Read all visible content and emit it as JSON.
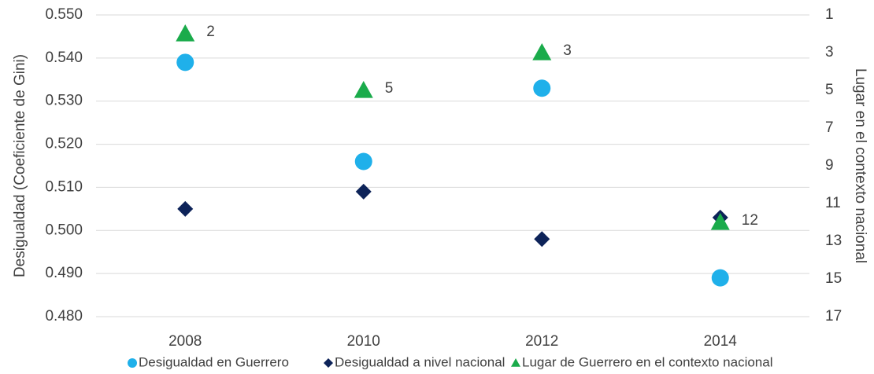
{
  "chart_data": {
    "type": "scatter",
    "categories": [
      "2008",
      "2010",
      "2012",
      "2014"
    ],
    "y_label": "Desigualdad (Coeficiente de Gini)",
    "y2_label": "Lugar en el contexto nacional",
    "ylim": [
      0.48,
      0.55
    ],
    "yticks": [
      {
        "value": 0.48,
        "label": "0.480"
      },
      {
        "value": 0.49,
        "label": "0.490"
      },
      {
        "value": 0.5,
        "label": "0.500"
      },
      {
        "value": 0.51,
        "label": "0.510"
      },
      {
        "value": 0.52,
        "label": "0.520"
      },
      {
        "value": 0.53,
        "label": "0.530"
      },
      {
        "value": 0.54,
        "label": "0.540"
      },
      {
        "value": 0.55,
        "label": "0.550"
      }
    ],
    "y2lim": [
      17,
      1
    ],
    "y2_inverted": true,
    "y2ticks": [
      1,
      3,
      5,
      7,
      9,
      11,
      13,
      15,
      17
    ],
    "grid": true,
    "legend": "bottom",
    "series": [
      {
        "name": "Desigualdad en Guerrero",
        "color": "#1fb0ea",
        "marker": "circle",
        "values": [
          0.539,
          0.516,
          0.533,
          0.489
        ]
      },
      {
        "name": "Desigualdad a nivel nacional",
        "color": "#0d2359",
        "marker": "diamond",
        "values": [
          0.505,
          0.509,
          0.498,
          0.503
        ]
      },
      {
        "name": "Lugar de Guerrero en el contexto nacional",
        "color": "#1aab4b",
        "marker": "triangle",
        "axis": "y2",
        "show_labels": true,
        "values": [
          2,
          5,
          3,
          12
        ]
      }
    ]
  }
}
